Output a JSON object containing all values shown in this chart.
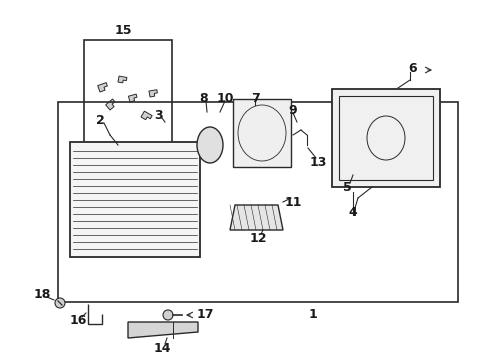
{
  "bg_color": "#ffffff",
  "line_color": "#2a2a2a",
  "label_color": "#1a1a1a",
  "fig_width": 4.9,
  "fig_height": 3.6,
  "dpi": 100
}
